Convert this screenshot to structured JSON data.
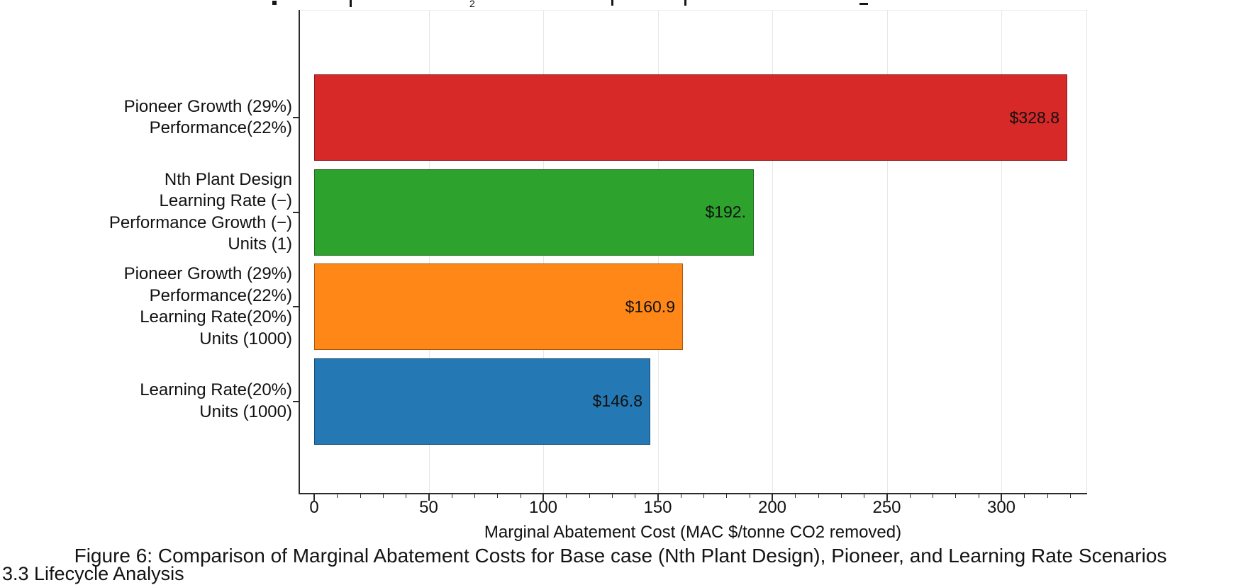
{
  "clipped_title": {
    "visible_fragment": "2"
  },
  "chart_data": {
    "type": "bar",
    "orientation": "horizontal",
    "title": "",
    "xlabel": "Marginal Abatement Cost (MAC $/tonne CO2 removed)",
    "ylabel": "",
    "xlim": [
      0,
      337
    ],
    "x_major_ticks": [
      0,
      50,
      100,
      150,
      200,
      250,
      300
    ],
    "x_minor_tick_step": 10,
    "grid": "vertical-major-light",
    "legend": "none",
    "bars": [
      {
        "category_lines": [
          "Pioneer Growth (29%)",
          "Performance(22%)"
        ],
        "value": 328.8,
        "value_label": "$328.8",
        "color": "#d62928"
      },
      {
        "category_lines": [
          "Nth Plant Design",
          "Learning Rate (−)",
          "Performance Growth (−)",
          "Units (1)"
        ],
        "value": 192.0,
        "value_label": "$192.",
        "color": "#2da22d"
      },
      {
        "category_lines": [
          "Pioneer Growth (29%)",
          "Performance(22%)",
          "Learning Rate(20%)",
          "Units (1000)"
        ],
        "value": 160.9,
        "value_label": "$160.9",
        "color": "#ff8718"
      },
      {
        "category_lines": [
          "Learning Rate(20%)",
          "Units (1000)"
        ],
        "value": 146.8,
        "value_label": "$146.8",
        "color": "#2478b4"
      }
    ]
  },
  "caption": "Figure 6: Comparison of Marginal Abatement Costs for Base case (Nth Plant Design), Pioneer, and Learning Rate Scenarios",
  "clipped_bottom_heading": "3.3 Lifecycle Analysis",
  "colors": {
    "grid": "#e7e7e7",
    "spine": "#2a2a2a",
    "text": "#111111"
  }
}
